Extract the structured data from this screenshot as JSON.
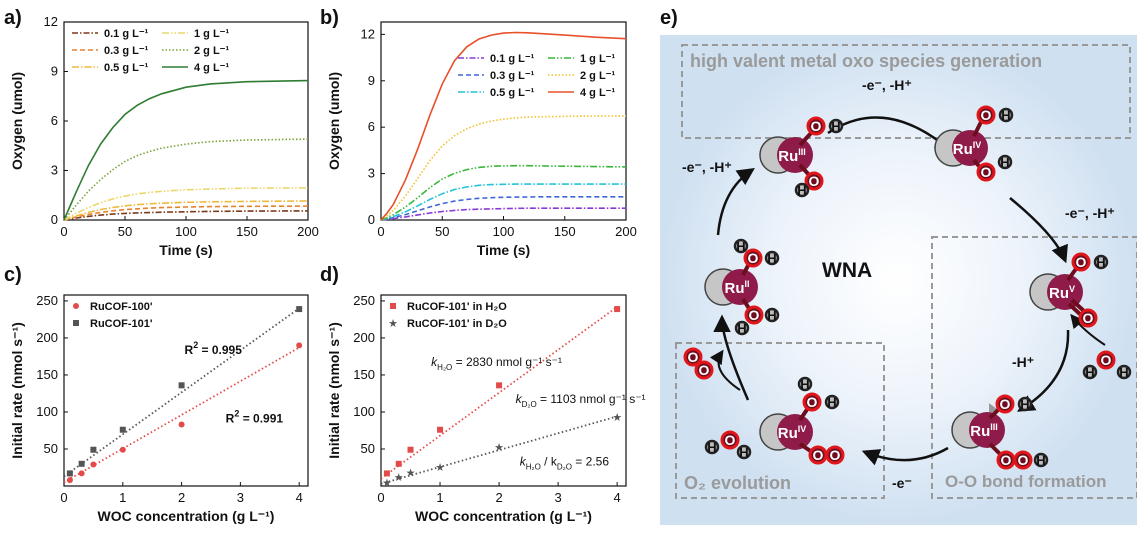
{
  "panel_labels": {
    "a": "a)",
    "b": "b)",
    "c": "c)",
    "d": "d)",
    "e": "e)"
  },
  "chart_data": [
    {
      "id": "a",
      "type": "line",
      "xlabel": "Time (s)",
      "ylabel": "Oxygen (umol)",
      "xlim": [
        0,
        200
      ],
      "ylim": [
        0,
        12
      ],
      "xticks": [
        0,
        50,
        100,
        150,
        200
      ],
      "yticks": [
        0,
        3,
        6,
        9,
        12
      ],
      "grid": false,
      "legend_position": "top-left, two columns",
      "x": [
        0,
        5,
        10,
        20,
        30,
        40,
        50,
        60,
        70,
        80,
        100,
        120,
        150,
        200
      ],
      "series": [
        {
          "name": "0.1 g L⁻¹",
          "color": "#7a3b1a",
          "dash": "6 2 1.5 2",
          "values": [
            0,
            0.06,
            0.12,
            0.22,
            0.3,
            0.36,
            0.4,
            0.43,
            0.45,
            0.47,
            0.5,
            0.52,
            0.54,
            0.55
          ]
        },
        {
          "name": "0.3 g L⁻¹",
          "color": "#e8812b",
          "dash": "5 3",
          "values": [
            0,
            0.09,
            0.18,
            0.34,
            0.46,
            0.56,
            0.63,
            0.68,
            0.72,
            0.75,
            0.79,
            0.81,
            0.83,
            0.84
          ]
        },
        {
          "name": "0.5 g L⁻¹",
          "color": "#ecb93a",
          "dash": "7 2 1.5 2",
          "values": [
            0,
            0.12,
            0.24,
            0.46,
            0.63,
            0.76,
            0.86,
            0.93,
            0.98,
            1.02,
            1.07,
            1.1,
            1.13,
            1.15
          ]
        },
        {
          "name": "1 g L⁻¹",
          "color": "#ecd76a",
          "dash": "7 2 1.5 2 1.5 2",
          "values": [
            0,
            0.2,
            0.4,
            0.76,
            1.05,
            1.28,
            1.45,
            1.58,
            1.67,
            1.74,
            1.83,
            1.88,
            1.93,
            1.95
          ]
        },
        {
          "name": "2 g L⁻¹",
          "color": "#7ba33a",
          "dash": "1.5 2",
          "values": [
            0,
            0.45,
            0.9,
            1.75,
            2.45,
            3.05,
            3.55,
            3.9,
            4.15,
            4.35,
            4.6,
            4.75,
            4.85,
            4.9
          ]
        },
        {
          "name": "4 g L⁻¹",
          "color": "#2e7d32",
          "dash": "",
          "values": [
            0,
            0.85,
            1.7,
            3.3,
            4.6,
            5.6,
            6.4,
            6.95,
            7.35,
            7.65,
            8.05,
            8.25,
            8.38,
            8.45
          ]
        }
      ]
    },
    {
      "id": "b",
      "type": "line",
      "xlabel": "Time (s)",
      "ylabel": "Oxygen (umol)",
      "xlim": [
        0,
        200
      ],
      "ylim": [
        0,
        12.8
      ],
      "xticks": [
        0,
        50,
        100,
        150,
        200
      ],
      "yticks": [
        0,
        3,
        6,
        9,
        12
      ],
      "grid": false,
      "legend_position": "upper middle, two columns",
      "x": [
        0,
        5,
        10,
        20,
        30,
        40,
        50,
        60,
        70,
        80,
        90,
        100,
        110,
        120,
        130,
        150,
        175,
        200
      ],
      "series": [
        {
          "name": "0.1 g L⁻¹",
          "color": "#8a3ad6",
          "dash": "6 2 1.5 2",
          "values": [
            0,
            0.04,
            0.09,
            0.2,
            0.33,
            0.45,
            0.55,
            0.62,
            0.67,
            0.7,
            0.72,
            0.74,
            0.75,
            0.76,
            0.76,
            0.76,
            0.76,
            0.76
          ]
        },
        {
          "name": "0.3 g L⁻¹",
          "color": "#3f68d8",
          "dash": "5 3",
          "values": [
            0,
            0.07,
            0.15,
            0.35,
            0.6,
            0.85,
            1.06,
            1.22,
            1.33,
            1.4,
            1.44,
            1.47,
            1.48,
            1.49,
            1.5,
            1.5,
            1.5,
            1.5
          ]
        },
        {
          "name": "0.5 g L⁻¹",
          "color": "#26c3d9",
          "dash": "7 2 1.5 2",
          "values": [
            0,
            0.1,
            0.22,
            0.53,
            0.92,
            1.33,
            1.7,
            1.97,
            2.14,
            2.24,
            2.29,
            2.31,
            2.32,
            2.32,
            2.32,
            2.32,
            2.32,
            2.32
          ]
        },
        {
          "name": "1 g L⁻¹",
          "color": "#37b73a",
          "dash": "7 2 1.5 2 1.5 2",
          "values": [
            0,
            0.15,
            0.34,
            0.84,
            1.45,
            2.1,
            2.65,
            3.02,
            3.26,
            3.4,
            3.47,
            3.5,
            3.51,
            3.51,
            3.5,
            3.48,
            3.45,
            3.43
          ]
        },
        {
          "name": "2 g L⁻¹",
          "color": "#f2c12a",
          "dash": "1.5 2",
          "values": [
            0,
            0.28,
            0.62,
            1.55,
            2.7,
            3.85,
            4.8,
            5.45,
            5.9,
            6.2,
            6.4,
            6.52,
            6.6,
            6.65,
            6.68,
            6.7,
            6.72,
            6.73
          ]
        },
        {
          "name": "4 g L⁻¹",
          "color": "#e8502a",
          "dash": "",
          "values": [
            0,
            0.45,
            1.0,
            2.6,
            4.6,
            6.8,
            8.8,
            10.3,
            11.2,
            11.7,
            11.95,
            12.08,
            12.12,
            12.1,
            12.05,
            11.95,
            11.82,
            11.72
          ]
        }
      ]
    },
    {
      "id": "c",
      "type": "scatter",
      "xlabel": "WOC concentration (g L⁻¹)",
      "ylabel": "Initial rate (nmol s⁻¹)",
      "xlim": [
        0,
        4.15
      ],
      "ylim": [
        0,
        258
      ],
      "xticks": [
        0,
        1,
        2,
        3,
        4
      ],
      "yticks": [
        50,
        100,
        150,
        200,
        250
      ],
      "grid": false,
      "legend_position": "top-left",
      "series": [
        {
          "name": "RuCOF-100'",
          "color": "#e34a4a",
          "marker": "circle",
          "x": [
            0.1,
            0.3,
            0.5,
            1,
            2,
            4
          ],
          "y": [
            8,
            17,
            29,
            49,
            83,
            190
          ],
          "fit": [
            [
              0,
              5
            ],
            [
              4,
              187
            ]
          ]
        },
        {
          "name": "RuCOF-101'",
          "color": "#555555",
          "marker": "square",
          "x": [
            0.1,
            0.3,
            0.5,
            1,
            2,
            4
          ],
          "y": [
            17,
            30,
            49,
            76,
            136,
            239
          ],
          "fit": [
            [
              0,
              13
            ],
            [
              4,
              240
            ]
          ]
        }
      ],
      "annotations": [
        {
          "text": "R",
          "sup": "2",
          "rest": " = 0.995",
          "x": 2.05,
          "y": 178
        },
        {
          "text": "R",
          "sup": "2",
          "rest": " = 0.991",
          "x": 2.75,
          "y": 86
        }
      ]
    },
    {
      "id": "d",
      "type": "scatter",
      "xlabel": "WOC concentration (g L⁻¹)",
      "ylabel": "Initial rate (nmol s⁻¹)",
      "xlim": [
        0,
        4.15
      ],
      "ylim": [
        0,
        258
      ],
      "xticks": [
        0,
        1,
        2,
        3,
        4
      ],
      "yticks": [
        50,
        100,
        150,
        200,
        250
      ],
      "grid": false,
      "legend_position": "top-left",
      "series": [
        {
          "name": "RuCOF-101' in H₂O",
          "color": "#e34a4a",
          "marker": "square",
          "x": [
            0.1,
            0.3,
            0.5,
            1,
            2,
            4
          ],
          "y": [
            17,
            30,
            49,
            76,
            136,
            239
          ],
          "fit": [
            [
              0,
              10
            ],
            [
              4,
              242
            ]
          ]
        },
        {
          "name": "RuCOF-101' in D₂O",
          "color": "#555555",
          "marker": "star",
          "x": [
            0.1,
            0.3,
            0.5,
            1,
            2,
            4
          ],
          "y": [
            5,
            12,
            18,
            26,
            53,
            93
          ],
          "fit": [
            [
              0,
              3
            ],
            [
              4,
              94
            ]
          ]
        }
      ],
      "annotations": [
        {
          "text": "k",
          "sub": "H₂O",
          "rest": " = 2830 nmol g⁻¹ s⁻¹",
          "x": 0.85,
          "y": 162
        },
        {
          "text": "k",
          "sub": "D₂O",
          "rest": " = 1103 nmol g⁻¹ s⁻¹",
          "x": 2.28,
          "y": 112
        },
        {
          "text": "k",
          "sub": "H₂O",
          "rest": " / k",
          "sub2": "D₂O",
          "rest2": " = 2.56",
          "x": 2.35,
          "y": 28
        }
      ]
    }
  ],
  "scheme": {
    "box_top": "high valent metal oxo species generation",
    "box_right": "O-O bond formation",
    "box_left": "O₂ evolution",
    "center": "WNA",
    "step_top": "-e⁻, -H⁺",
    "step_left": "-e⁻, -H⁺",
    "step_right": "-e⁻, -H⁺",
    "step_mid": "-H⁺",
    "step_bottom": "-e⁻",
    "ru3_top": "Ru",
    "ru3_top_ox": "III",
    "ru4_top": "Ru",
    "ru4_top_ox": "IV",
    "ru5": "Ru",
    "ru5_ox": "V",
    "ru3_bot": "Ru",
    "ru3_bot_ox": "III",
    "ru4_bot": "Ru",
    "ru4_bot_ox": "IV",
    "ru2": "Ru",
    "ru2_ox": "II",
    "atom_o": "O",
    "atom_h": "H"
  }
}
